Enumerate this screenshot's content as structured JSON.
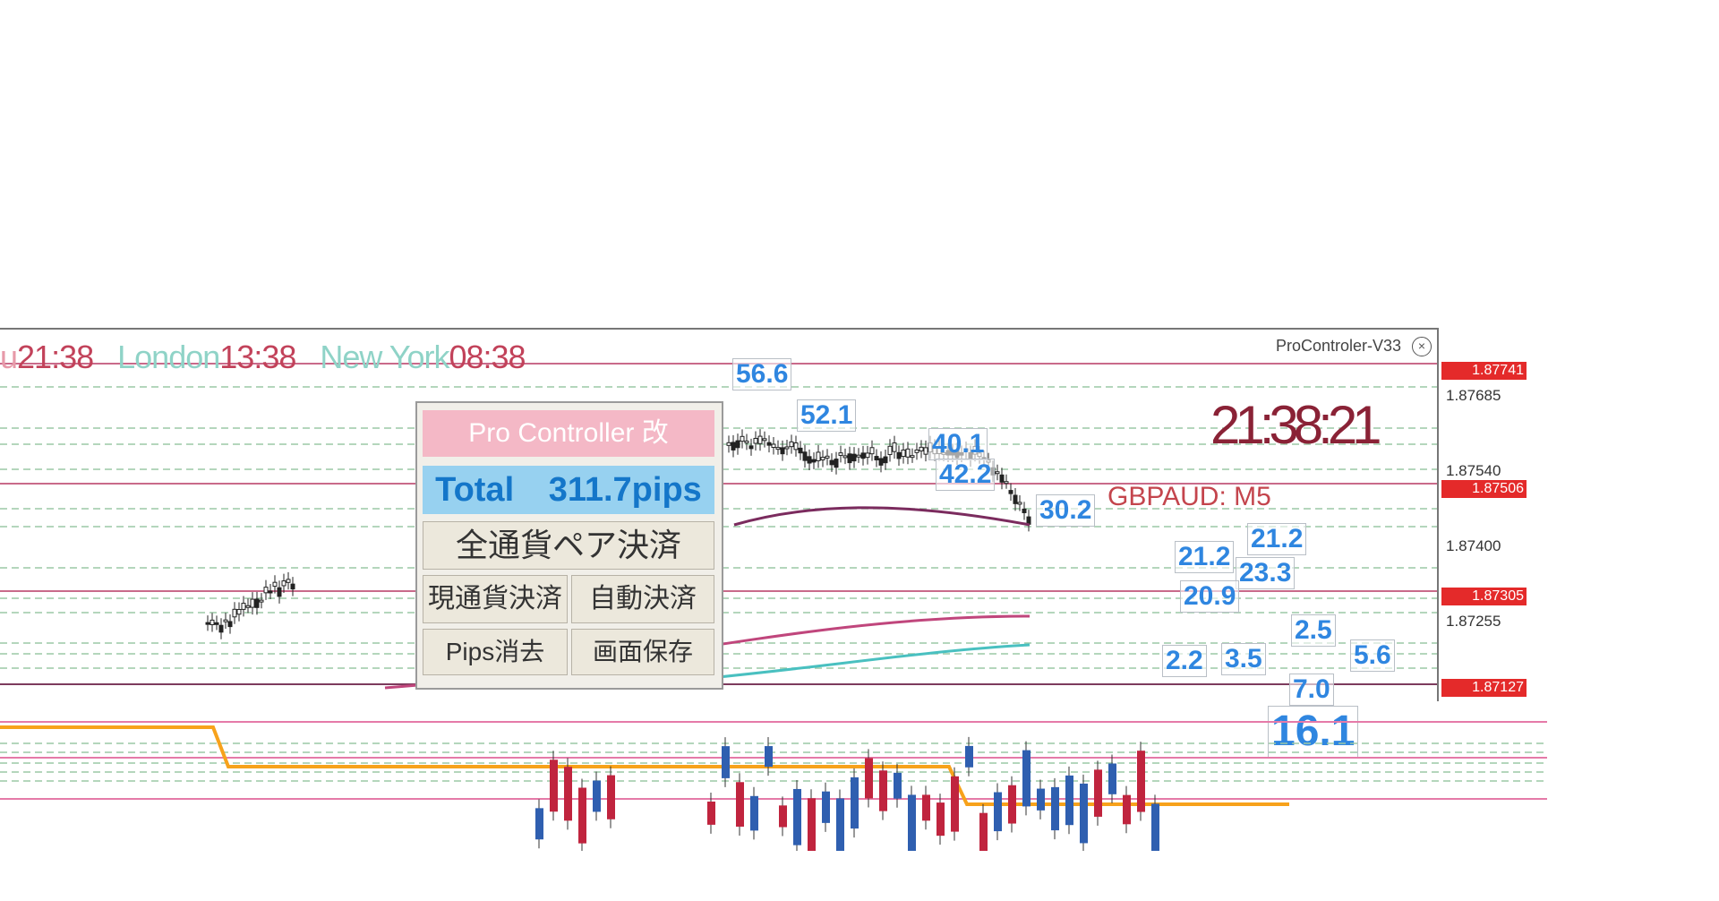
{
  "window": {
    "title": "ProControler-V33"
  },
  "sessions": [
    {
      "label": "u",
      "time": "21:38"
    },
    {
      "label": "London",
      "time": "13:38"
    },
    {
      "label": "New York",
      "time": "08:38"
    }
  ],
  "panel": {
    "title": "Pro Controller 改",
    "total_label": "Total",
    "total_value": "311.7pips",
    "buttons": {
      "close_all_pairs": "全通貨ペア決済",
      "close_current_pair": "現通貨決済",
      "auto_close": "自動決済",
      "clear_pips": "Pips消去",
      "save_screen": "画面保存"
    }
  },
  "symbol": "GBPAUD: M5",
  "clock": "21:38:21",
  "price_axis": {
    "labels": [
      "1.87685",
      "1.87540",
      "1.87400",
      "1.87255"
    ],
    "tags": [
      "1.87741",
      "1.87506",
      "1.87305",
      "1.87127"
    ]
  },
  "pips_labels": [
    "56.6",
    "52.1",
    "40.1",
    "42.2",
    "30.2",
    "21.2",
    "21.2",
    "23.3",
    "20.9",
    "2.2",
    "3.5",
    "2.5",
    "5.6",
    "7.0",
    "16.1"
  ],
  "colors": {
    "tag_red": "#e42a2a",
    "pips_blue": "#2f86e0",
    "ma_orange": "#f7a21b",
    "ma_purple": "#7b2b5e",
    "ma_teal": "#49c0c0",
    "level_pink": "#e57aa8"
  }
}
